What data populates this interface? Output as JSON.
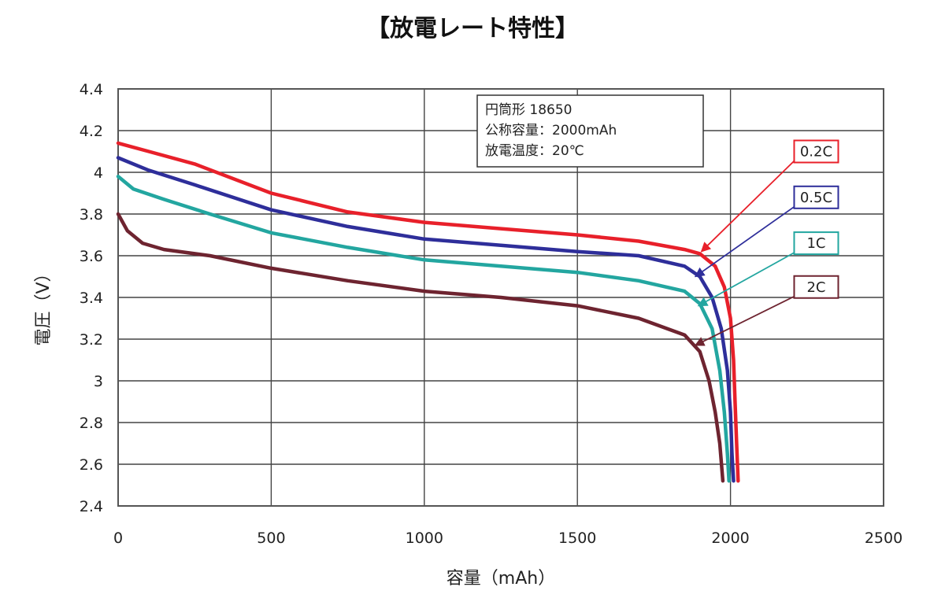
{
  "chart_data": {
    "type": "line",
    "title": "【放電レート特性】",
    "xlabel": "容量（mAh）",
    "ylabel": "電圧（V）",
    "xlim": [
      0,
      2500
    ],
    "ylim": [
      2.4,
      4.4
    ],
    "x_ticks": [
      "0",
      "500",
      "1000",
      "1500",
      "2000",
      "2500"
    ],
    "y_ticks": [
      "2.4",
      "2.6",
      "2.8",
      "3",
      "3.2",
      "3.4",
      "3.6",
      "3.8",
      "4",
      "4.2",
      "4.4"
    ],
    "x_tick_values": [
      0,
      500,
      1000,
      1500,
      2000,
      2500
    ],
    "y_tick_values": [
      2.4,
      2.6,
      2.8,
      3.0,
      3.2,
      3.4,
      3.6,
      3.8,
      4.0,
      4.2,
      4.4
    ],
    "grid": true,
    "info_box": [
      "円筒形 18650",
      "公称容量：2000mAh",
      "放電温度：20℃"
    ],
    "series": [
      {
        "name": "0.2C",
        "color": "#e8202a",
        "label_anchor": [
          2280,
          4.1
        ],
        "arrow_target": [
          1905,
          3.62
        ],
        "points": [
          [
            0,
            4.14
          ],
          [
            100,
            4.1
          ],
          [
            250,
            4.04
          ],
          [
            500,
            3.9
          ],
          [
            750,
            3.81
          ],
          [
            1000,
            3.76
          ],
          [
            1250,
            3.73
          ],
          [
            1500,
            3.7
          ],
          [
            1700,
            3.67
          ],
          [
            1850,
            3.63
          ],
          [
            1900,
            3.61
          ],
          [
            1950,
            3.55
          ],
          [
            1980,
            3.45
          ],
          [
            2000,
            3.3
          ],
          [
            2010,
            3.1
          ],
          [
            2015,
            2.9
          ],
          [
            2020,
            2.7
          ],
          [
            2025,
            2.52
          ]
        ]
      },
      {
        "name": "0.5C",
        "color": "#2e2e9a",
        "label_anchor": [
          2280,
          3.88
        ],
        "arrow_target": [
          1885,
          3.5
        ],
        "points": [
          [
            0,
            4.07
          ],
          [
            100,
            4.01
          ],
          [
            250,
            3.94
          ],
          [
            500,
            3.82
          ],
          [
            750,
            3.74
          ],
          [
            1000,
            3.68
          ],
          [
            1250,
            3.65
          ],
          [
            1500,
            3.62
          ],
          [
            1700,
            3.6
          ],
          [
            1850,
            3.55
          ],
          [
            1900,
            3.5
          ],
          [
            1940,
            3.4
          ],
          [
            1970,
            3.25
          ],
          [
            1990,
            3.05
          ],
          [
            2000,
            2.85
          ],
          [
            2005,
            2.65
          ],
          [
            2010,
            2.52
          ]
        ]
      },
      {
        "name": "1C",
        "color": "#23a6a0",
        "label_anchor": [
          2280,
          3.66
        ],
        "arrow_target": [
          1895,
          3.36
        ],
        "points": [
          [
            0,
            3.98
          ],
          [
            50,
            3.92
          ],
          [
            150,
            3.87
          ],
          [
            300,
            3.8
          ],
          [
            500,
            3.71
          ],
          [
            750,
            3.64
          ],
          [
            1000,
            3.58
          ],
          [
            1250,
            3.55
          ],
          [
            1500,
            3.52
          ],
          [
            1700,
            3.48
          ],
          [
            1850,
            3.43
          ],
          [
            1900,
            3.37
          ],
          [
            1940,
            3.25
          ],
          [
            1965,
            3.05
          ],
          [
            1980,
            2.85
          ],
          [
            1990,
            2.65
          ],
          [
            1995,
            2.52
          ]
        ]
      },
      {
        "name": "2C",
        "color": "#6e2430",
        "label_anchor": [
          2280,
          3.45
        ],
        "arrow_target": [
          1885,
          3.17
        ],
        "points": [
          [
            0,
            3.8
          ],
          [
            30,
            3.72
          ],
          [
            80,
            3.66
          ],
          [
            150,
            3.63
          ],
          [
            300,
            3.6
          ],
          [
            500,
            3.54
          ],
          [
            750,
            3.48
          ],
          [
            1000,
            3.43
          ],
          [
            1250,
            3.4
          ],
          [
            1500,
            3.36
          ],
          [
            1700,
            3.3
          ],
          [
            1850,
            3.22
          ],
          [
            1900,
            3.14
          ],
          [
            1930,
            3.0
          ],
          [
            1950,
            2.85
          ],
          [
            1965,
            2.7
          ],
          [
            1975,
            2.52
          ]
        ]
      }
    ]
  }
}
